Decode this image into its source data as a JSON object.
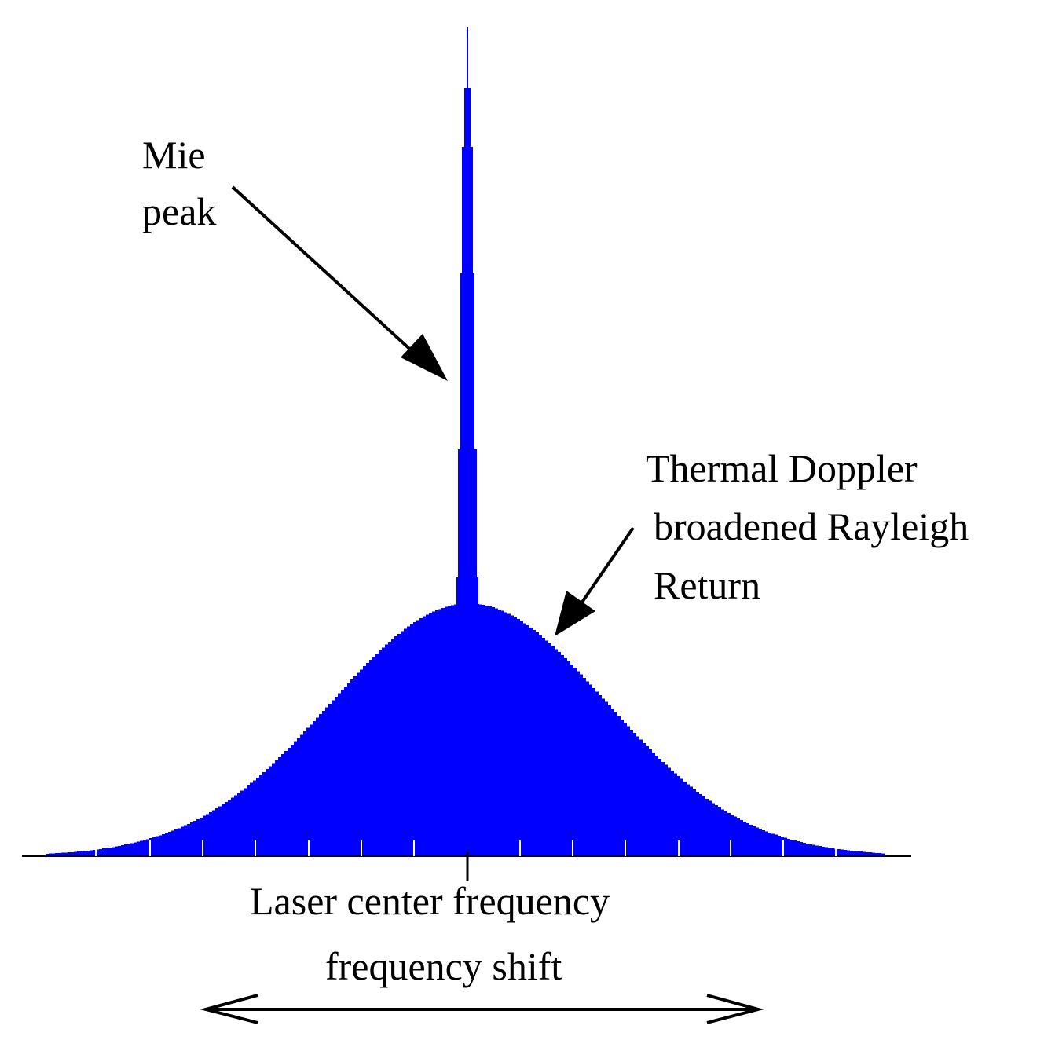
{
  "labels": {
    "mie_line1": "Mie",
    "mie_line2": "peak",
    "rayleigh_line1": "Thermal Doppler",
    "rayleigh_line2": "broadened Rayleigh",
    "rayleigh_line3": "Return",
    "center": "Laser center frequency",
    "shift": "frequency shift"
  },
  "colors": {
    "spectrum": "#0000ff",
    "ink": "#000000",
    "background": "#ffffff"
  },
  "spectrum": {
    "rayleigh_peak_relative": 0.305,
    "mie_peak_relative": 1.0
  }
}
